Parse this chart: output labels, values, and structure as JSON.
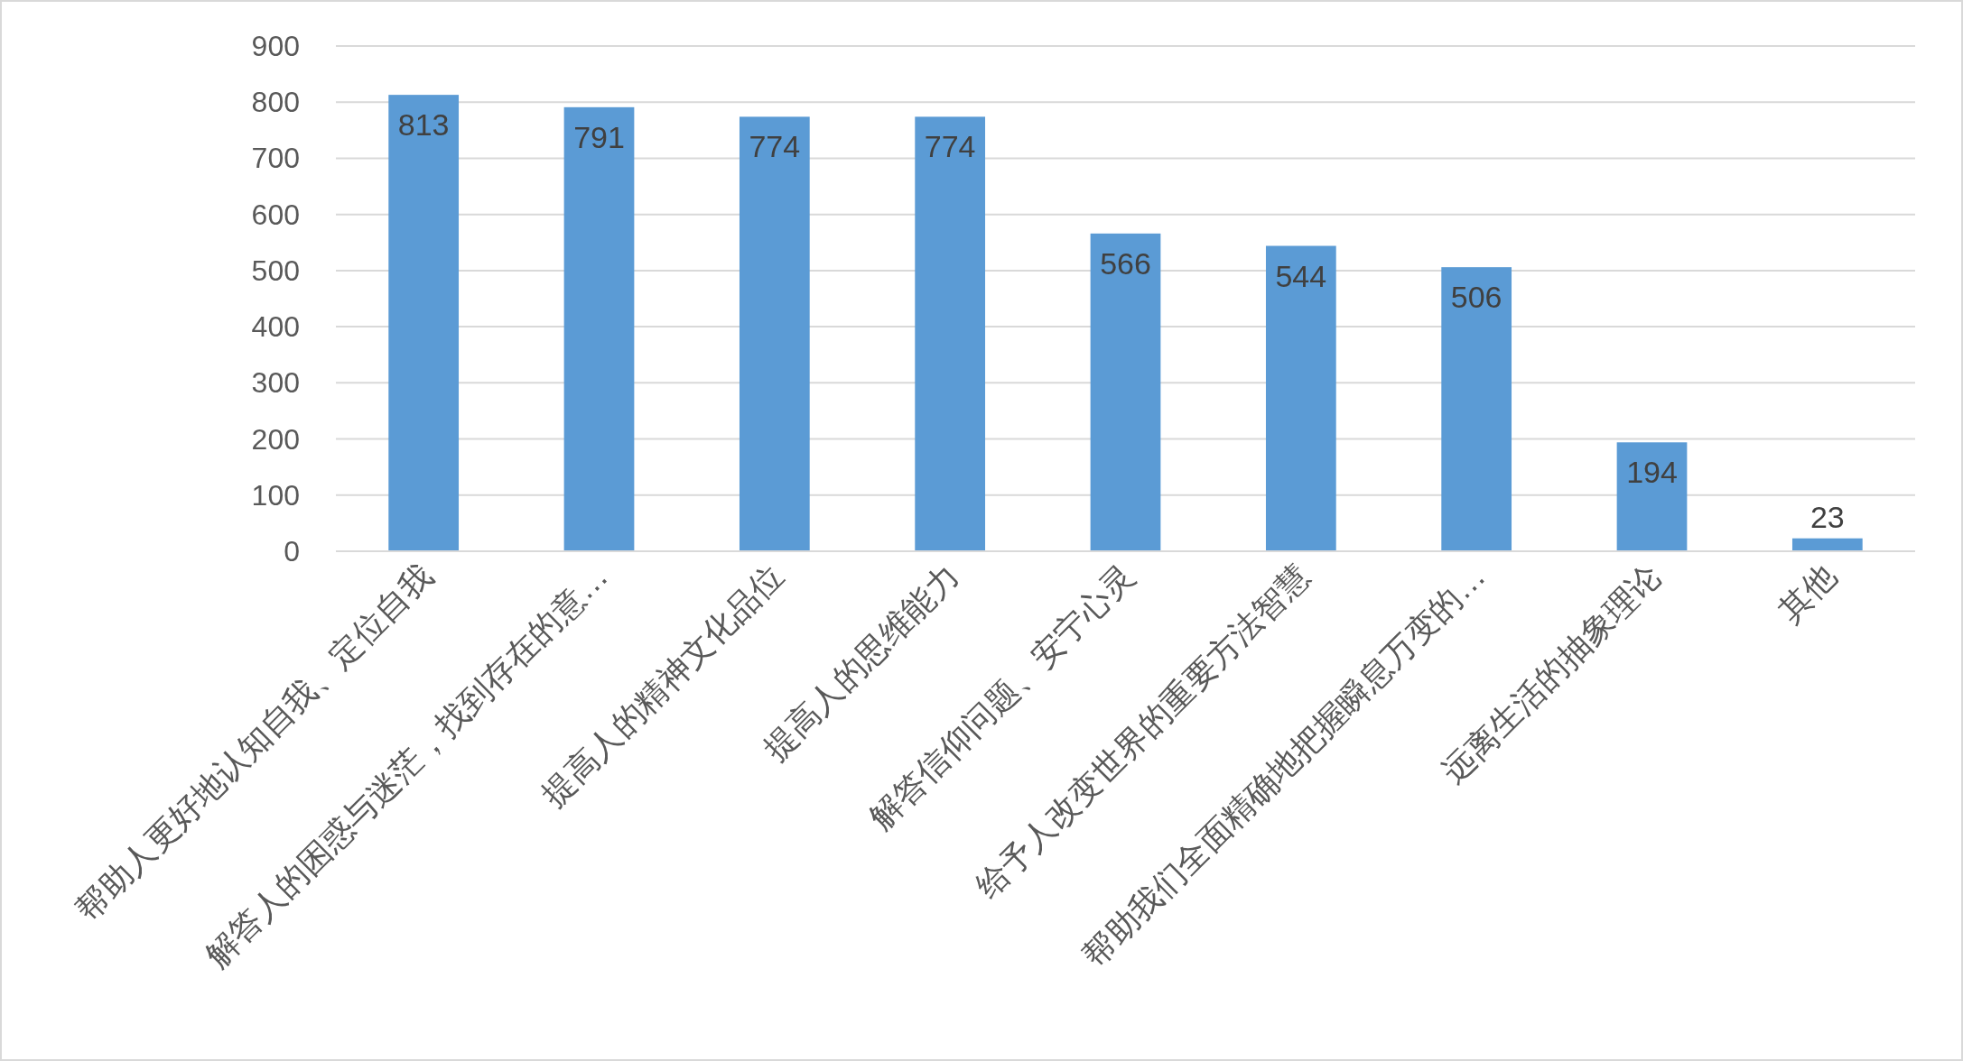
{
  "chart_data": {
    "type": "bar",
    "categories": [
      "帮助人更好地认知自我、定位自我",
      "解答人的困惑与迷茫，找到存在的意…",
      "提高人的精神文化品位",
      "提高人的思维能力",
      "解答信仰问题、安宁心灵",
      "给予人改变世界的重要方法智慧",
      "帮助我们全面精确地把握瞬息万变的…",
      "远离生活的抽象理论",
      "其他"
    ],
    "values": [
      813,
      791,
      774,
      774,
      566,
      544,
      506,
      194,
      23
    ],
    "color": "#5b9bd5",
    "ylim": [
      0,
      900
    ],
    "yticks": [
      0,
      100,
      200,
      300,
      400,
      500,
      600,
      700,
      800,
      900
    ],
    "grid": "y",
    "data_labels": true
  }
}
